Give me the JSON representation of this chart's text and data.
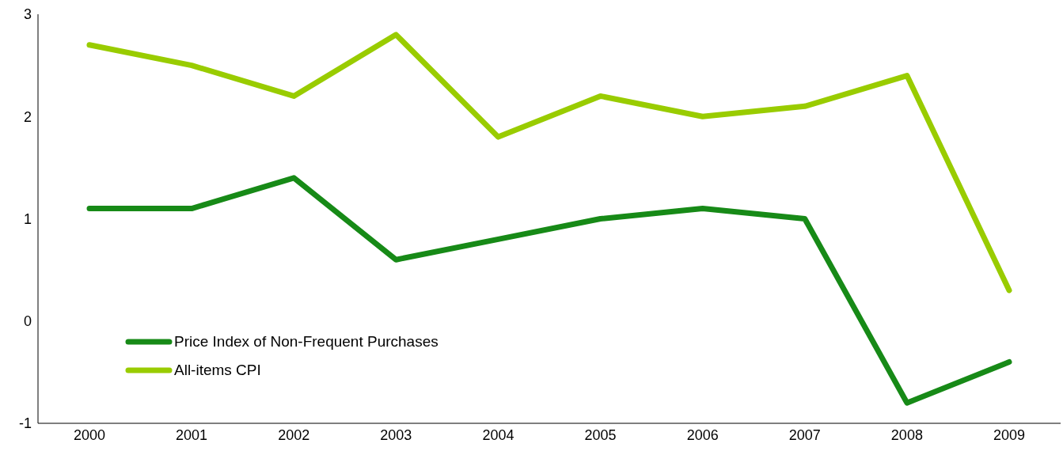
{
  "chart_data": {
    "type": "line",
    "categories": [
      "2000",
      "2001",
      "2002",
      "2003",
      "2004",
      "2005",
      "2006",
      "2007",
      "2008",
      "2009"
    ],
    "series": [
      {
        "name": "Price Index of Non-Frequent Purchases",
        "color": "#178a17",
        "values": [
          1.1,
          1.1,
          1.4,
          0.6,
          0.8,
          1.0,
          1.1,
          1.0,
          -0.8,
          -0.4
        ]
      },
      {
        "name": "All-items CPI",
        "color": "#99cc00",
        "values": [
          2.7,
          2.5,
          2.2,
          2.8,
          1.8,
          2.2,
          2.0,
          2.1,
          2.4,
          0.3
        ]
      }
    ],
    "ylim": [
      -1,
      3
    ],
    "yticks": [
      -1,
      0,
      1,
      2,
      3
    ],
    "grid": false,
    "legend": "bottom left",
    "marker": "none",
    "line_style": "solid"
  }
}
